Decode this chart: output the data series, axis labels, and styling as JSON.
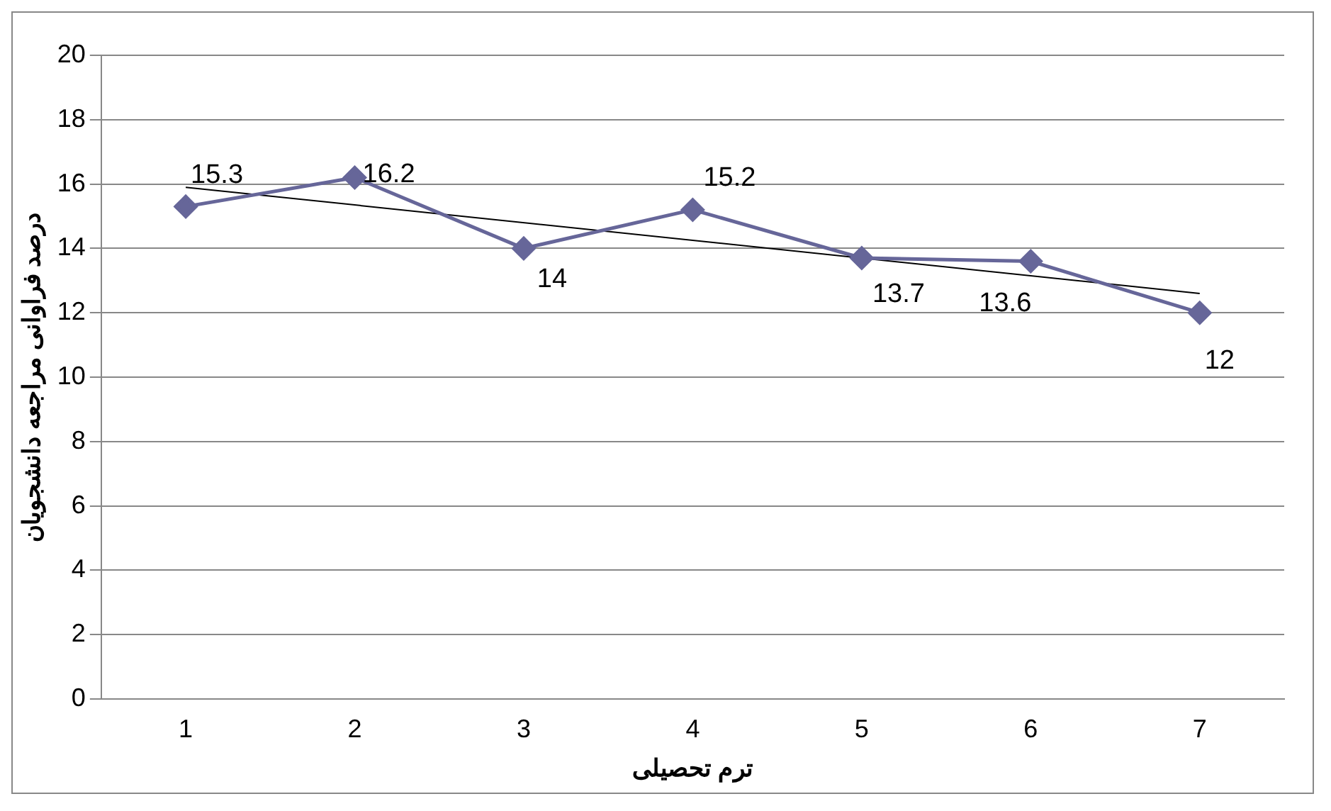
{
  "chart_data": {
    "type": "line",
    "xlabel": "ترم تحصیلی",
    "ylabel": "درصد فراوانی مراجعه دانشجویان",
    "categories": [
      "1",
      "2",
      "3",
      "4",
      "5",
      "6",
      "7"
    ],
    "series": [
      {
        "color": "#666699",
        "values": [
          15.3,
          16.2,
          14,
          15.2,
          13.7,
          13.6,
          12
        ],
        "value_labels": [
          "15.3",
          "16.2",
          "14",
          "15.2",
          "13.7",
          "13.6",
          "12"
        ],
        "marker": "diamond"
      },
      {
        "type": "line",
        "color": "#000000",
        "x": [
          "1",
          "7"
        ],
        "values": [
          15.9,
          12.6
        ],
        "marker": "none"
      }
    ],
    "ylim": [
      0,
      20
    ],
    "yticks": [
      0,
      2,
      4,
      6,
      8,
      10,
      12,
      14,
      16,
      18,
      20
    ],
    "grid": "y",
    "legend": false,
    "line_style": "solid"
  }
}
